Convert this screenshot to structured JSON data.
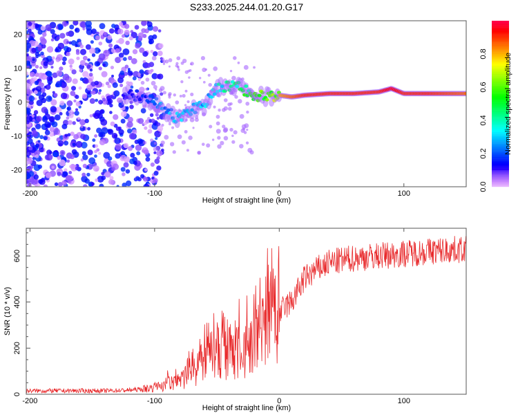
{
  "chart_data": [
    {
      "type": "heatmap",
      "title": "S233.2025.244.01.20.G17",
      "xlabel": "Height of straight line (km)",
      "ylabel": "Frequency (Hz)",
      "xlim": [
        -203,
        150
      ],
      "ylim": [
        -25,
        24
      ],
      "xticks": [
        -200,
        -100,
        0,
        100
      ],
      "yticks": [
        -20,
        -10,
        0,
        10,
        20
      ],
      "colorbar": {
        "label": "Normalized spectral amplitude",
        "range": [
          0,
          1
        ],
        "ticks": [
          "0.0",
          "0.2",
          "0.4",
          "0.6",
          "0.8"
        ]
      },
      "ridge": {
        "x": [
          -120,
          -110,
          -100,
          -90,
          -80,
          -70,
          -60,
          -50,
          -40,
          -30,
          -20,
          -10,
          0,
          10,
          20,
          40,
          60,
          80,
          90,
          100,
          120,
          150
        ],
        "freq": [
          2,
          2,
          0,
          -3,
          -5,
          -2,
          -1,
          4,
          5,
          4,
          2,
          1.5,
          2,
          1.5,
          2,
          2.5,
          2.5,
          3,
          4,
          2.5,
          2.5,
          2.5
        ],
        "amplitude": [
          0.15,
          0.2,
          0.25,
          0.3,
          0.35,
          0.3,
          0.35,
          0.4,
          0.5,
          0.55,
          0.7,
          0.75,
          0.8,
          0.85,
          0.9,
          0.9,
          0.9,
          0.9,
          0.95,
          0.9,
          0.9,
          0.85
        ]
      }
    },
    {
      "type": "line",
      "xlabel": "Height of straight line (km)",
      "ylabel": "SNR (10 * v/v)",
      "xlim": [
        -203,
        150
      ],
      "ylim": [
        0,
        720
      ],
      "xticks": [
        -200,
        -100,
        0,
        100
      ],
      "yticks": [
        0,
        200,
        400,
        600
      ],
      "series": [
        {
          "name": "SNR",
          "color": "#e8282a",
          "x": [
            -200,
            -180,
            -160,
            -140,
            -120,
            -110,
            -100,
            -90,
            -80,
            -70,
            -60,
            -50,
            -40,
            -30,
            -20,
            -15,
            -10,
            -5,
            0,
            5,
            10,
            15,
            20,
            30,
            40,
            60,
            80,
            100,
            120,
            150
          ],
          "y": [
            15,
            15,
            15,
            15,
            18,
            22,
            30,
            45,
            60,
            100,
            150,
            170,
            180,
            190,
            200,
            230,
            330,
            340,
            350,
            380,
            400,
            450,
            500,
            540,
            570,
            590,
            600,
            610,
            620,
            630
          ]
        }
      ]
    }
  ]
}
